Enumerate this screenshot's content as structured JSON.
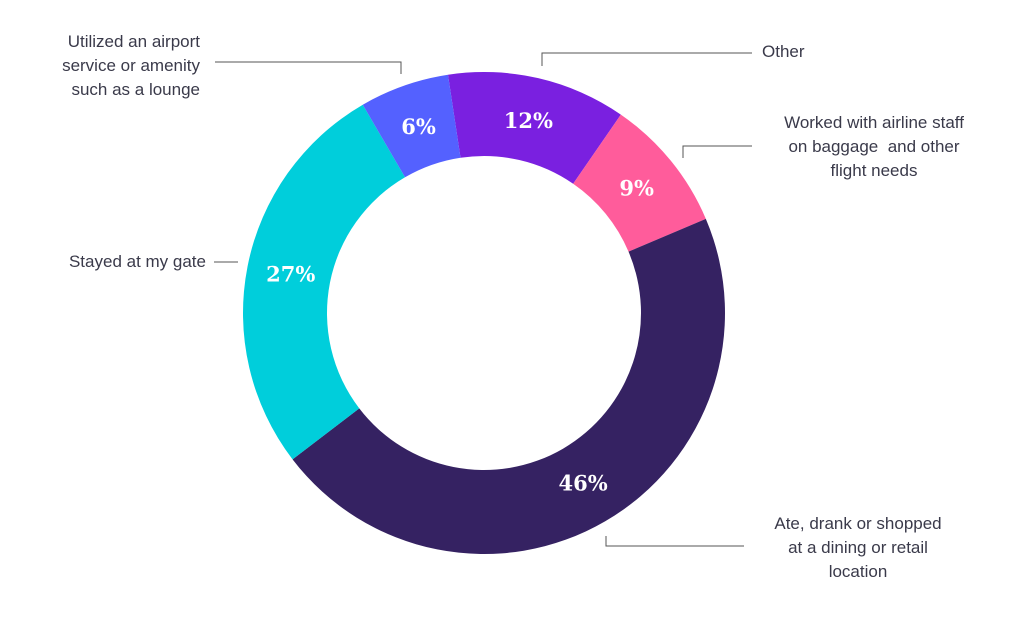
{
  "chart_data": {
    "type": "pie",
    "donut": true,
    "categories": [
      "Other",
      "Worked with airline staff\non baggage  and other\nflight needs",
      "Ate, drank or shopped\nat a dining or retail\nlocation",
      "Stayed at my gate",
      "Utilized an airport\nservice or amenity\nsuch as a lounge"
    ],
    "values": [
      12,
      9,
      46,
      27,
      6
    ],
    "value_labels": [
      "12%",
      "9%",
      "46%",
      "27%",
      "6%"
    ],
    "colors": [
      "#7a20e0",
      "#ff5c9b",
      "#352262",
      "#00cedb",
      "#5461ff"
    ],
    "legend": "none (leader-line labels)"
  }
}
